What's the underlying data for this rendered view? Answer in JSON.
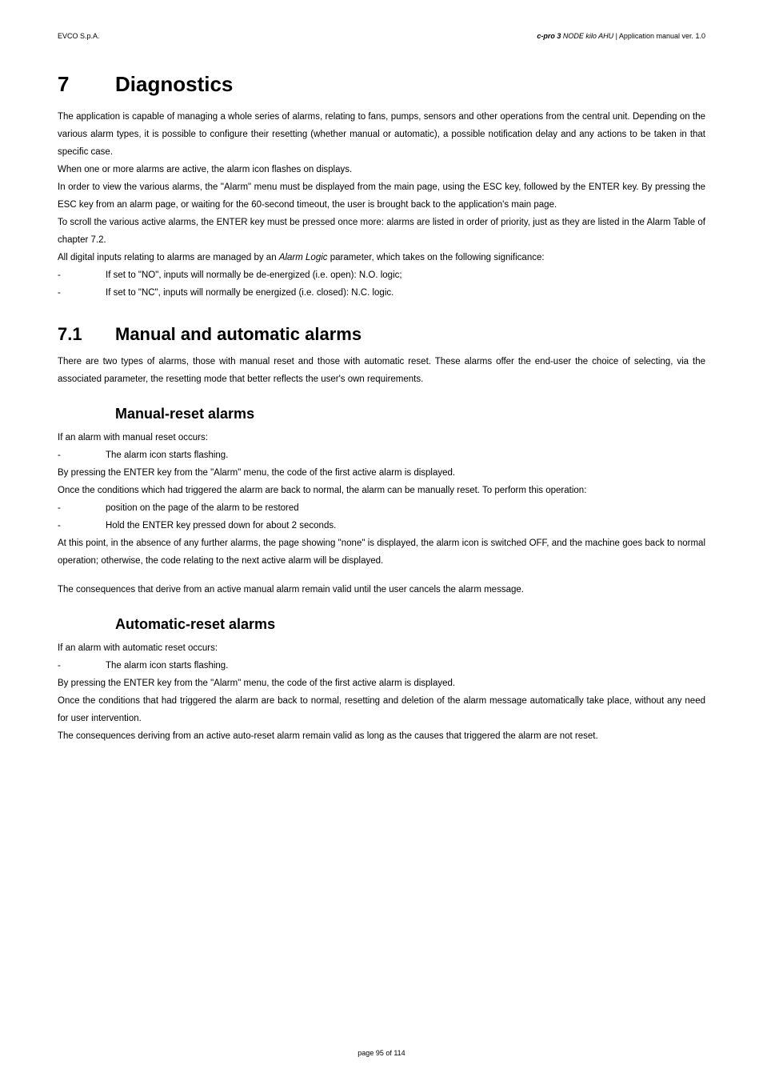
{
  "header": {
    "left": "EVCO S.p.A.",
    "right_bold_italic": "c-pro 3",
    "right_italic": " NODE kilo AHU",
    "right_plain": " | Application manual ver. 1.0"
  },
  "h1": {
    "num": "7",
    "title": "Diagnostics"
  },
  "intro": [
    "The application is capable of managing a whole series of alarms, relating to fans, pumps, sensors and other operations from the central unit.  Depending on the various alarm types, it is possible to configure their resetting (whether manual or automatic), a possible notification delay and any actions to be taken in that specific case.",
    "When one or more alarms are active, the alarm icon flashes on displays.",
    "In order to view the various alarms, the \"Alarm\" menu must be displayed from the main page, using the ESC key, followed by the ENTER key. By pressing the ESC key from an alarm page, or waiting for the 60-second timeout, the user is brought back to the application's main page.",
    "To scroll the various active alarms, the ENTER key must be pressed once more:  alarms are listed in order of priority, just as they are listed in the Alarm Table of chapter 7.2."
  ],
  "intro_last_pre": "All digital inputs relating to alarms are managed by an ",
  "intro_last_it": "Alarm Logic",
  "intro_last_post": " parameter, which takes on the following significance:",
  "intro_bullets": [
    "If set to \"NO\", inputs will normally be de-energized (i.e. open):   N.O. logic;",
    "If set to \"NC\", inputs will normally be energized (i.e. closed):   N.C. logic."
  ],
  "h2": {
    "num": "7.1",
    "title": "Manual and automatic alarms"
  },
  "sec71_para": "There are two types of alarms, those with manual reset and those with automatic reset. These alarms offer the end-user the choice of selecting, via the associated parameter, the resetting mode that better reflects the user's own requirements.",
  "h3a": "Manual-reset alarms",
  "manual": {
    "p1": "If an alarm with manual reset occurs:",
    "b1": "The alarm icon starts flashing.",
    "p2": "By pressing the ENTER key from the \"Alarm\" menu, the code of the first active alarm is displayed.",
    "p3": "Once the conditions which had triggered the alarm are back to normal, the alarm can be manually reset. To perform this operation:",
    "b2": "position on the page of the alarm to be restored",
    "b3": "Hold the ENTER key pressed down for about 2 seconds.",
    "p4": "At this point, in the absence of any further alarms, the page showing \"none\" is displayed, the alarm icon is switched OFF, and the machine goes back to normal operation; otherwise, the code relating to the next active alarm will be displayed.",
    "p5": "The consequences that derive from an active manual alarm remain valid until the user cancels the alarm message."
  },
  "h3b": "Automatic-reset alarms",
  "auto": {
    "p1": "If an alarm with automatic reset occurs:",
    "b1": "The alarm icon starts flashing.",
    "p2": "By pressing the ENTER key from the \"Alarm\" menu, the code of the first active alarm is displayed.",
    "p3": "Once the conditions that had triggered the alarm are back to normal, resetting and deletion of the alarm message automatically take place, without any need for user intervention.",
    "p4": "The consequences deriving from an active auto-reset alarm remain valid as long as the causes that triggered the alarm are not reset."
  },
  "footer": "page 95 of 114"
}
